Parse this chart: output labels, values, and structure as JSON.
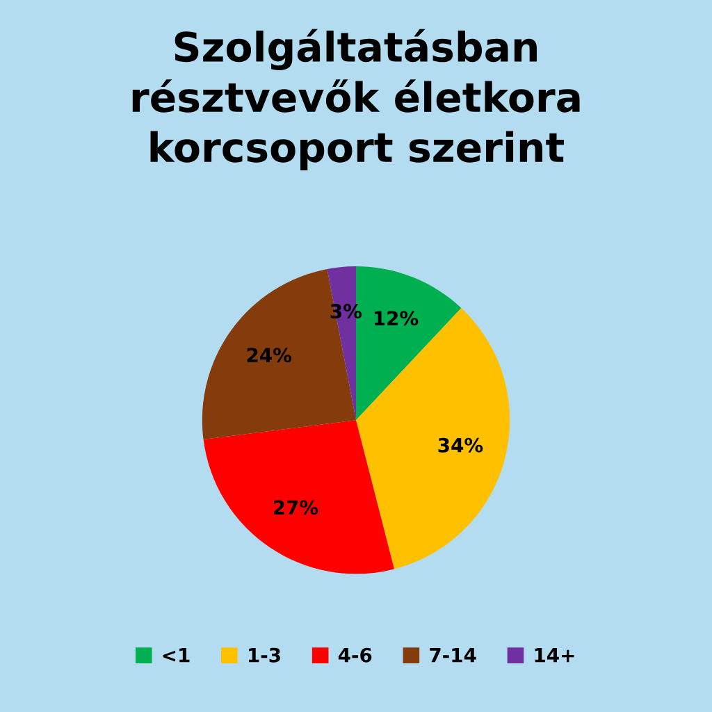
{
  "chart_data": {
    "type": "pie",
    "title": "Szolgáltatásban\nrésztvevők életkora\nkorcsoport szerint",
    "categories": [
      "<1",
      "1-3",
      "4-6",
      "7-14",
      "14+"
    ],
    "values": [
      12,
      34,
      27,
      24,
      3
    ],
    "colors": [
      "#00b050",
      "#ffc000",
      "#ff0000",
      "#843c0c",
      "#7030a0"
    ],
    "value_labels": [
      "12%",
      "34%",
      "27%",
      "24%",
      "3%"
    ],
    "legend": "bottom"
  }
}
